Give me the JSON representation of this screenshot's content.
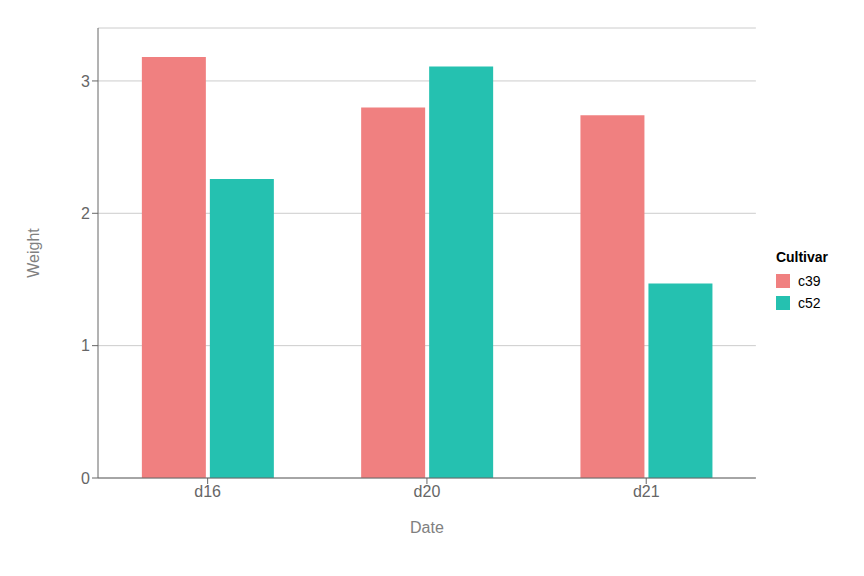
{
  "chart_data": {
    "type": "bar",
    "categories": [
      "d16",
      "d20",
      "d21"
    ],
    "series": [
      {
        "name": "c39",
        "color": "#F08080",
        "values": [
          3.18,
          2.8,
          2.74
        ]
      },
      {
        "name": "c52",
        "color": "#25C1B0",
        "values": [
          2.26,
          3.11,
          1.47
        ]
      }
    ],
    "xlabel": "Date",
    "ylabel": "Weight",
    "legend_title": "Cultivar",
    "legend": "right",
    "ylim": [
      0,
      3.4
    ],
    "yticks": [
      0,
      1,
      2,
      3
    ],
    "grid": true
  }
}
